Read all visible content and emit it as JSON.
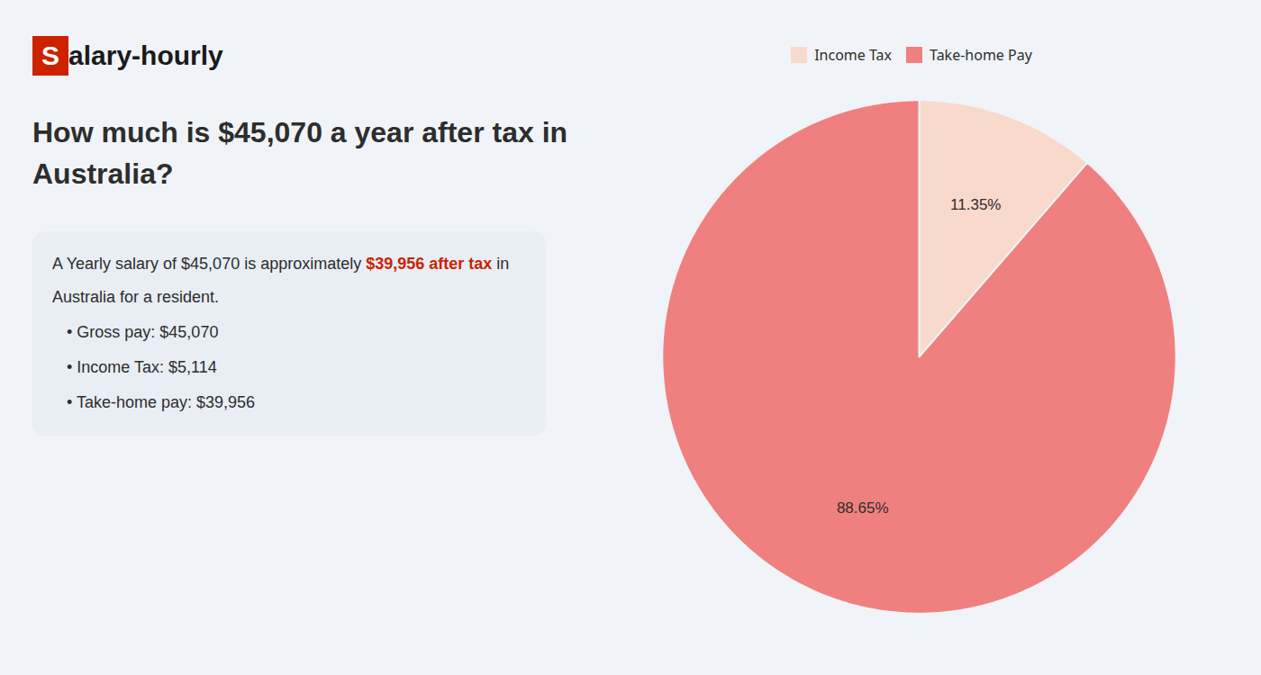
{
  "chart_data": {
    "type": "pie",
    "title": "How much is $45,070 a year after tax in\nAustralia?",
    "categories": [
      "Income Tax",
      "Take-home Pay"
    ],
    "values": [
      11.35,
      88.65
    ],
    "value_labels": [
      "11.35%",
      "88.65%"
    ],
    "colors": [
      "#f9d9cc",
      "#f08080"
    ],
    "data_labels": true,
    "legend": "top",
    "annotations": [
      [
        {
          "text": "S",
          "color": "#cc2200"
        },
        {
          "text": "alary-hourly"
        }
      ],
      [
        {
          "text": "A Yearly salary of $45,070 is approximately "
        },
        {
          "text": "$39,956 after tax",
          "color": "#cc2200"
        },
        {
          "text": " in"
        }
      ],
      [
        {
          "text": "Australia for a resident."
        }
      ],
      [
        {
          "text": "• Gross pay: $45,070"
        }
      ],
      [
        {
          "text": "• Income Tax: $5,114"
        }
      ],
      [
        {
          "text": "• Take-home pay: $39,956"
        }
      ]
    ]
  }
}
